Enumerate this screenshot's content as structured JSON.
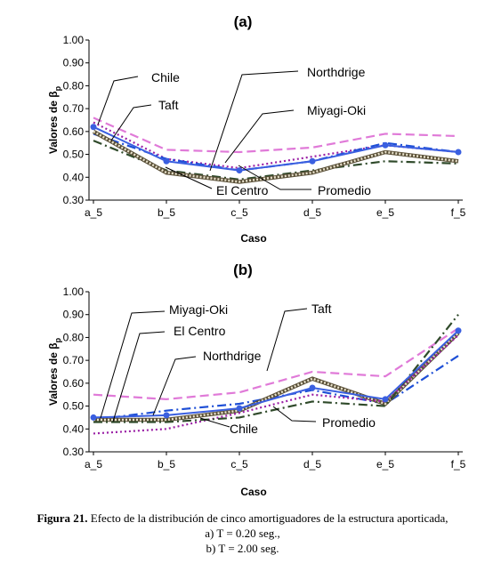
{
  "chart_data": [
    {
      "type": "line",
      "title": "(a)",
      "xlabel": "Caso",
      "ylabel": "Valores de β",
      "ylabel_subscript": "p",
      "categories": [
        "a_5",
        "b_5",
        "c_5",
        "d_5",
        "e_5",
        "f_5"
      ],
      "ylim": [
        0.3,
        1.0
      ],
      "yticks": [
        "0.30",
        "0.40",
        "0.50",
        "0.60",
        "0.70",
        "0.80",
        "0.90",
        "1.00"
      ],
      "grid": false,
      "series": [
        {
          "name": "Chile",
          "style": "dashdot",
          "color": "#2f4a2a",
          "values": [
            0.56,
            0.43,
            0.39,
            0.43,
            0.47,
            0.46
          ]
        },
        {
          "name": "Taft",
          "style": "dashed",
          "color": "#e07ad8",
          "values": [
            0.66,
            0.52,
            0.51,
            0.53,
            0.59,
            0.58
          ]
        },
        {
          "name": "Northdrige",
          "style": "dotted",
          "color": "#9a1fa5",
          "values": [
            0.64,
            0.48,
            0.44,
            0.49,
            0.54,
            0.51
          ]
        },
        {
          "name": "Miyagi-Oki",
          "style": "dashdot",
          "color": "#1e4fd6",
          "values": [
            0.59,
            0.48,
            0.43,
            0.47,
            0.55,
            0.51
          ]
        },
        {
          "name": "El Centro",
          "style": "hatched",
          "color": "#7a7050",
          "values": [
            0.6,
            0.42,
            0.38,
            0.42,
            0.51,
            0.47
          ]
        },
        {
          "name": "Promedio",
          "style": "solid-marker",
          "color": "#3a5fe0",
          "values": [
            0.62,
            0.47,
            0.43,
            0.47,
            0.54,
            0.51
          ]
        }
      ],
      "annotations": [
        "Chile",
        "Taft",
        "Northdrige",
        "Miyagi-Oki",
        "El Centro",
        "Promedio"
      ]
    },
    {
      "type": "line",
      "title": "(b)",
      "xlabel": "Caso",
      "ylabel": "Valores de β",
      "ylabel_subscript": "p",
      "categories": [
        "a_5",
        "b_5",
        "c_5",
        "d_5",
        "e_5",
        "f_5"
      ],
      "ylim": [
        0.3,
        1.0
      ],
      "yticks": [
        "0.30",
        "0.40",
        "0.50",
        "0.60",
        "0.70",
        "0.80",
        "0.90",
        "1.00"
      ],
      "grid": false,
      "series": [
        {
          "name": "Miyagi-Oki",
          "style": "dashdot",
          "color": "#1e4fd6",
          "values": [
            0.44,
            0.48,
            0.51,
            0.57,
            0.51,
            0.72
          ]
        },
        {
          "name": "El Centro",
          "style": "hatched",
          "color": "#7a7050",
          "values": [
            0.44,
            0.44,
            0.48,
            0.62,
            0.51,
            0.82
          ]
        },
        {
          "name": "Northdrige",
          "style": "dotted",
          "color": "#9a1fa5",
          "values": [
            0.38,
            0.4,
            0.47,
            0.55,
            0.52,
            0.81
          ]
        },
        {
          "name": "Taft",
          "style": "dashed",
          "color": "#e07ad8",
          "values": [
            0.55,
            0.53,
            0.56,
            0.65,
            0.63,
            0.84
          ]
        },
        {
          "name": "Chile",
          "style": "dashdot",
          "color": "#2f4a2a",
          "values": [
            0.43,
            0.43,
            0.45,
            0.52,
            0.5,
            0.9
          ]
        },
        {
          "name": "Promedio",
          "style": "solid-marker",
          "color": "#3a5fe0",
          "values": [
            0.45,
            0.46,
            0.49,
            0.58,
            0.53,
            0.83
          ]
        }
      ],
      "annotations": [
        "Miyagi-Oki",
        "El Centro",
        "Northdrige",
        "Taft",
        "Chile",
        "Promedio"
      ]
    }
  ],
  "caption": {
    "label": "Figura 21.",
    "line1": " Efecto de la distribución de cinco amortiguadores de la estructura aporticada,",
    "line2": "a) T = 0.20 seg.,",
    "line3": "b) T = 2.00 seg."
  }
}
